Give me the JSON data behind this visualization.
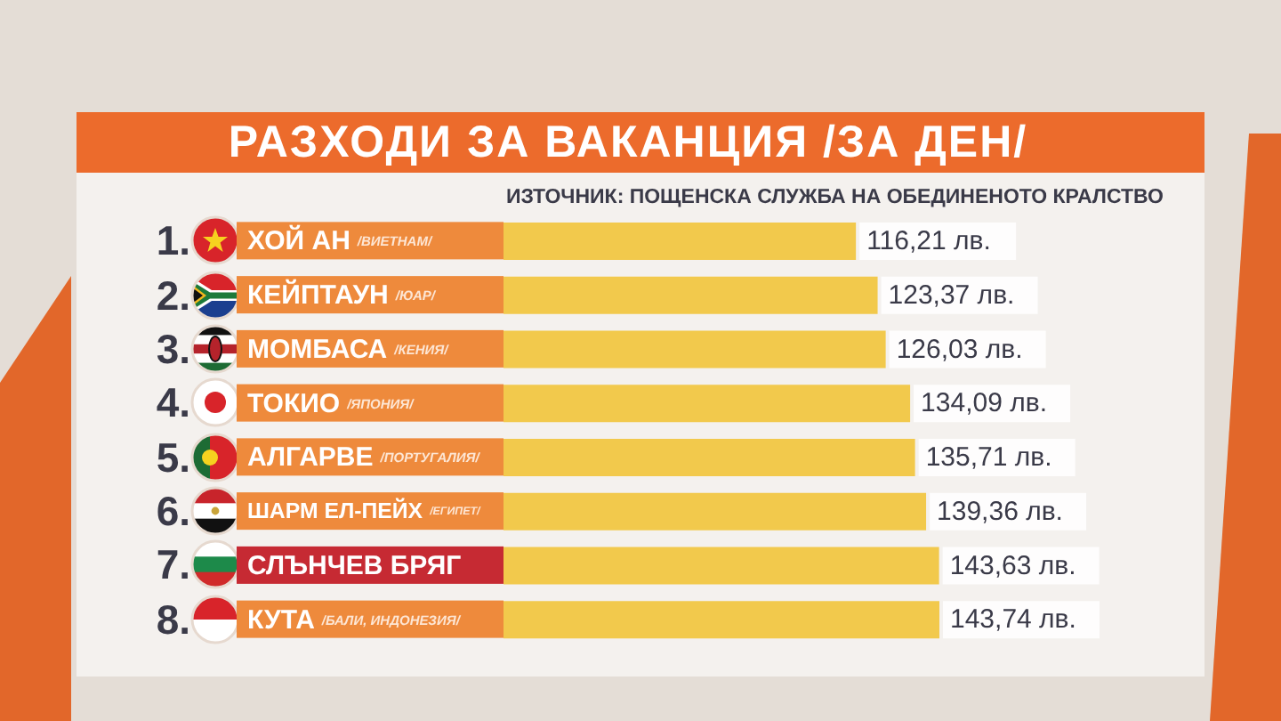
{
  "chart_data": {
    "type": "bar",
    "orientation": "horizontal",
    "title": "РАЗХОДИ ЗА ВАКАНЦИЯ /ЗА ДЕН/",
    "categories": [
      "ХОЙ АН /ВИЕТНАМ/",
      "КЕЙПТАУН /ЮАР/",
      "МОМБАСА /КЕНИЯ/",
      "ТОКИО /ЯПОНИЯ/",
      "АЛГАРВЕ /ПОРТУГАЛИЯ/",
      "ШАРМ ЕЛ-ПЕЙХ /ЕГИПЕТ/",
      "СЛЪНЧЕВ БРЯГ",
      "КУТА /БАЛИ, ИНДОНЕЗИЯ/"
    ],
    "values": [
      116.21,
      123.37,
      126.03,
      134.09,
      135.71,
      139.36,
      143.63,
      143.74
    ],
    "value_labels": [
      "116,21 лв.",
      "123,37 лв.",
      "126,03 лв.",
      "134,09 лв.",
      "135,71 лв.",
      "139,36 лв.",
      "143,63 лв.",
      "143,74 лв."
    ],
    "color": "#f2c94c",
    "annotations": [
      "ИЗТОЧНИК: ПОЩЕНСКА СЛУЖБА НА ОБЕДИНЕНОТО КРАЛСТВО",
      "1.",
      "2.",
      "3.",
      "4.",
      "5.",
      "6.",
      "7.",
      "8."
    ]
  }
}
